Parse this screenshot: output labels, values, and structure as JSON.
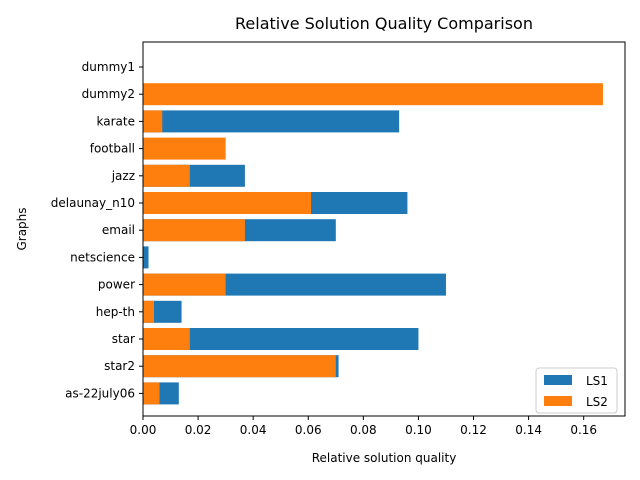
{
  "chart_data": {
    "type": "bar",
    "orientation": "horizontal",
    "stacking": "overlaid",
    "title": "Relative Solution Quality Comparison",
    "xlabel": "Relative solution quality",
    "ylabel": "Graphs",
    "xlim": [
      0,
      0.175
    ],
    "xticks": [
      "0.00",
      "0.02",
      "0.04",
      "0.06",
      "0.08",
      "0.10",
      "0.12",
      "0.14",
      "0.16"
    ],
    "categories": [
      "dummy1",
      "dummy2",
      "karate",
      "football",
      "jazz",
      "delaunay_n10",
      "email",
      "netscience",
      "power",
      "hep-th",
      "star",
      "star2",
      "as-22july06"
    ],
    "series": [
      {
        "name": "LS1",
        "color": "#1f77b4",
        "values": [
          0,
          0,
          0.093,
          0,
          0.037,
          0.096,
          0.07,
          0.002,
          0.11,
          0.014,
          0.1,
          0.071,
          0.013
        ]
      },
      {
        "name": "LS2",
        "color": "#ff7f0e",
        "values": [
          0,
          0.167,
          0.007,
          0.03,
          0.017,
          0.061,
          0.037,
          0,
          0.03,
          0.004,
          0.017,
          0.07,
          0.006
        ]
      }
    ],
    "legend_position": "lower-right",
    "grid": false
  }
}
